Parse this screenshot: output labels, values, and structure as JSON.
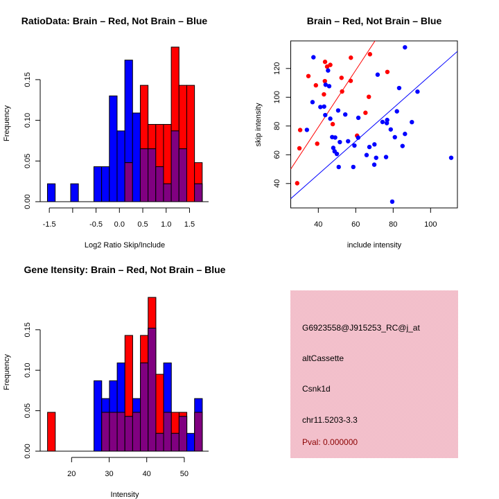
{
  "colors": {
    "brain": "#ff0000",
    "not_brain": "#0000ff",
    "overlap": "#800080",
    "panel_bg": "#f4c2cc",
    "pval": "#8b0000"
  },
  "chart_data": [
    {
      "type": "bar",
      "subtype": "overlaid-histogram",
      "title": "RatioData: Brain – Red, Not Brain – Blue",
      "xlabel": "Log2 Ratio Skip/Include",
      "ylabel": "Frequency",
      "bin_start": -1.54,
      "bin_width": 0.1656,
      "xticks": [
        -1.5,
        -1.0,
        -0.5,
        0.0,
        0.5,
        1.0,
        1.5
      ],
      "xtick_labels": [
        "-1.5",
        "",
        "-0.5",
        "0.0",
        "0.5",
        "1.0",
        "1.5"
      ],
      "yticks": [
        0.0,
        0.05,
        0.1,
        0.15
      ],
      "ytick_labels": [
        "0.00",
        "0.05",
        "0.10",
        "0.15"
      ],
      "ylim": [
        0,
        0.19
      ],
      "series": [
        {
          "name": "Brain",
          "color": "red",
          "values": [
            0,
            0,
            0,
            0,
            0,
            0,
            0,
            0,
            0,
            0,
            0.048,
            0,
            0.143,
            0.095,
            0.095,
            0.095,
            0.19,
            0.143,
            0.143,
            0.048
          ]
        },
        {
          "name": "Not Brain",
          "color": "blue",
          "values": [
            0.022,
            0,
            0,
            0.022,
            0,
            0,
            0.043,
            0.043,
            0.13,
            0.087,
            0.174,
            0.109,
            0.065,
            0.065,
            0.043,
            0.022,
            0.087,
            0.065,
            0,
            0.022
          ]
        }
      ]
    },
    {
      "type": "scatter",
      "title": "Brain – Red, Not Brain – Blue",
      "xlabel": "include intensity",
      "ylabel": "skip intensity",
      "xlim": [
        25.3,
        114.3
      ],
      "ylim": [
        23,
        139.2
      ],
      "xticks": [
        40,
        60,
        80,
        100
      ],
      "xtick_labels": [
        "40",
        "60",
        "80",
        "100"
      ],
      "yticks": [
        40,
        60,
        80,
        100,
        120
      ],
      "ytick_labels": [
        "40",
        "60",
        "80",
        "100",
        "120"
      ],
      "series": [
        {
          "name": "Brain",
          "color": "red",
          "fit_line": {
            "slope": 1.98,
            "intercept": 0
          },
          "points": [
            [
              28.7,
              40.2
            ],
            [
              29.9,
              64.5
            ],
            [
              30.3,
              77.2
            ],
            [
              34.7,
              114.7
            ],
            [
              38.7,
              108.3
            ],
            [
              39.4,
              67.7
            ],
            [
              43,
              102
            ],
            [
              43.6,
              124.6
            ],
            [
              43.5,
              111.2
            ],
            [
              44.7,
              121.3
            ],
            [
              46.4,
              122.5
            ],
            [
              47.7,
              81.3
            ],
            [
              52.4,
              113.5
            ],
            [
              52.7,
              104
            ],
            [
              57.4,
              127.5
            ],
            [
              57.3,
              111.4
            ],
            [
              60.7,
              73.3
            ],
            [
              65.2,
              89.2
            ],
            [
              67,
              100.3
            ],
            [
              67.6,
              129.9
            ],
            [
              76.9,
              117.6
            ]
          ]
        },
        {
          "name": "Not Brain",
          "color": "blue",
          "fit_line": {
            "slope": 1.15,
            "intercept": 0.4
          },
          "points": [
            [
              37.4,
              127.8
            ],
            [
              36.9,
              96.6
            ],
            [
              33.9,
              77.3
            ],
            [
              45.2,
              118.6
            ],
            [
              43.9,
              108.7
            ],
            [
              45.8,
              107.7
            ],
            [
              41.1,
              93.2
            ],
            [
              43.1,
              93.5
            ],
            [
              43.7,
              87.6
            ],
            [
              46.4,
              85.1
            ],
            [
              50.6,
              90.8
            ],
            [
              54.4,
              88
            ],
            [
              61.4,
              85.7
            ],
            [
              47.4,
              72.3
            ],
            [
              49,
              72
            ],
            [
              48,
              64.8
            ],
            [
              48.7,
              62.4
            ],
            [
              49.9,
              60.6
            ],
            [
              51.5,
              68.8
            ],
            [
              55.9,
              69.4
            ],
            [
              50.9,
              51.5
            ],
            [
              58.7,
              51.5
            ],
            [
              59.3,
              66.4
            ],
            [
              61.3,
              71.9
            ],
            [
              65.8,
              59.8
            ],
            [
              67.3,
              65.4
            ],
            [
              70,
              67.2
            ],
            [
              69.9,
              53.1
            ],
            [
              70.9,
              57.9
            ],
            [
              71.7,
              115.7
            ],
            [
              76.2,
              58.4
            ],
            [
              74.3,
              82.8
            ],
            [
              76.8,
              84.2
            ],
            [
              76.6,
              82
            ],
            [
              78.7,
              77.6
            ],
            [
              80.9,
              72.2
            ],
            [
              86.3,
              74.5
            ],
            [
              85,
              66.1
            ],
            [
              90,
              82.7
            ],
            [
              82,
              90.2
            ],
            [
              83.2,
              106.4
            ],
            [
              93,
              103.9
            ],
            [
              86.3,
              134.7
            ],
            [
              111,
              57.9
            ],
            [
              79.5,
              27.4
            ]
          ]
        }
      ]
    },
    {
      "type": "bar",
      "subtype": "overlaid-histogram",
      "title": "Gene Itensity: Brain – Red, Not Brain – Blue",
      "xlabel": "Intensity",
      "ylabel": "Frequency",
      "bin_start": 13.6,
      "bin_width": 2.06,
      "xticks": [
        20,
        30,
        40,
        50
      ],
      "xtick_labels": [
        "20",
        "30",
        "40",
        "50"
      ],
      "yticks": [
        0.0,
        0.05,
        0.1,
        0.15
      ],
      "ytick_labels": [
        "0.00",
        "0.05",
        "0.10",
        "0.15"
      ],
      "ylim": [
        0,
        0.19
      ],
      "series": [
        {
          "name": "Brain",
          "color": "red",
          "values": [
            0.048,
            0,
            0,
            0,
            0,
            0,
            0,
            0.048,
            0.048,
            0.048,
            0.143,
            0.048,
            0.143,
            0.19,
            0.095,
            0.048,
            0.048,
            0.048,
            0,
            0.048
          ]
        },
        {
          "name": "Not Brain",
          "color": "blue",
          "values": [
            0,
            0,
            0,
            0,
            0,
            0,
            0.087,
            0.065,
            0.087,
            0.109,
            0.043,
            0.065,
            0.109,
            0.152,
            0.022,
            0.109,
            0.022,
            0.043,
            0.022,
            0.065
          ]
        }
      ]
    }
  ],
  "info_panel": {
    "probe_id": "G6923558@J915253_RC@j_at",
    "event_type": "altCassette",
    "gene": "Csnk1d",
    "location": "chr11.5203-3.3",
    "pval": "Pval: 0.000000"
  }
}
